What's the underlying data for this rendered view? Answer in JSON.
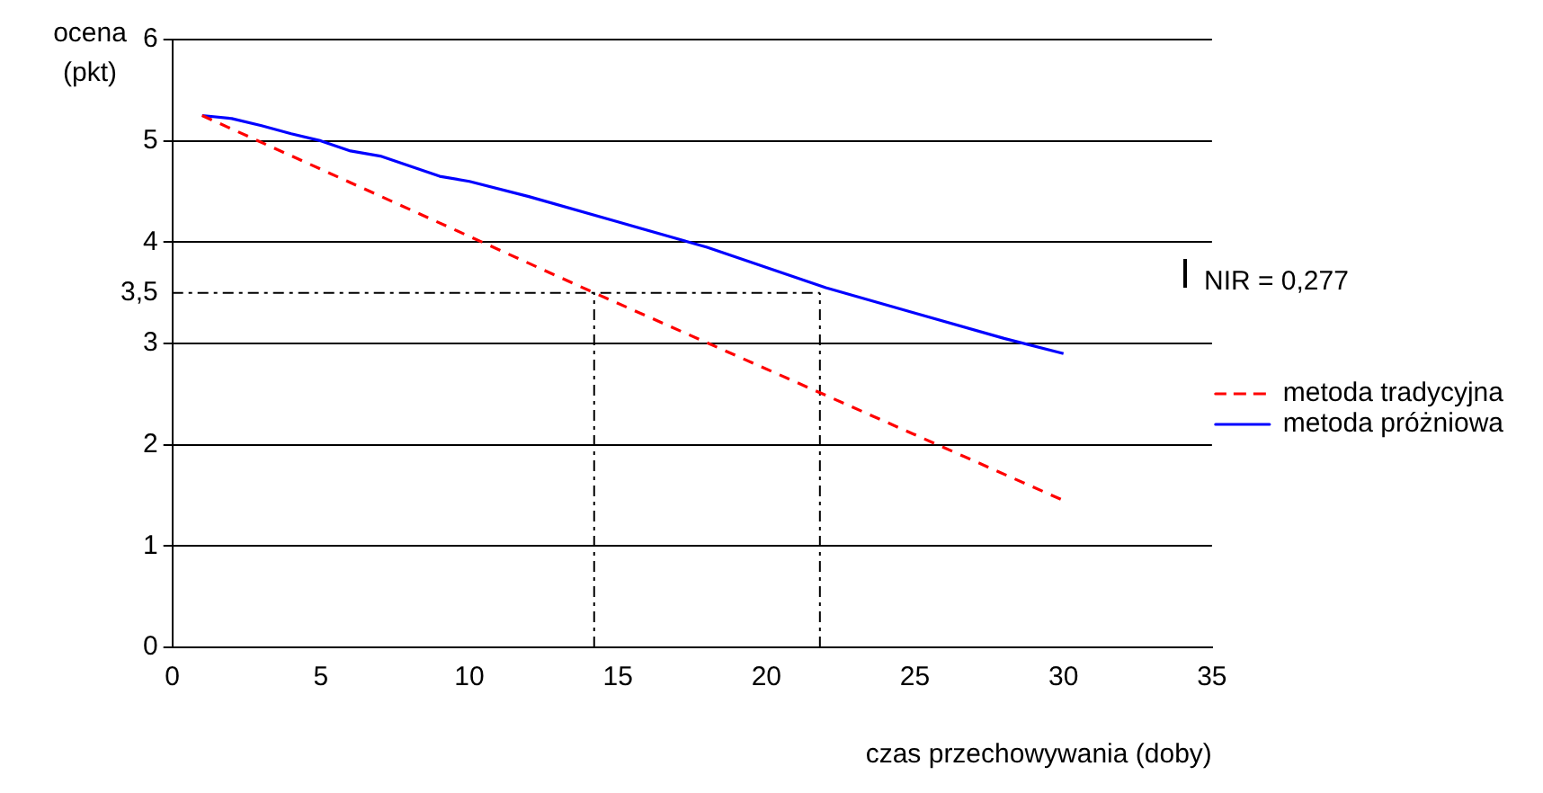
{
  "chart_data": {
    "type": "line",
    "xlabel": "czas przechowywania (doby)",
    "ylabel": "ocena (pkt)",
    "xlim": [
      0,
      35
    ],
    "xticks": [
      0,
      5,
      10,
      15,
      20,
      25,
      30,
      35
    ],
    "ylim": [
      0,
      6
    ],
    "yticks": [
      0,
      1,
      2,
      3,
      {
        "value": 3.5,
        "label": "3,5"
      },
      4,
      5,
      6
    ],
    "grid": "y",
    "legend": "right",
    "marker": "none",
    "annotations": [
      "NIR = 0,277"
    ],
    "series": [
      {
        "name": "metoda tradycyjna",
        "color": "#ff0000",
        "line_style": "dashed",
        "x": [
          1,
          14.2,
          30
        ],
        "values": [
          5.25,
          3.5,
          1.45
        ]
      },
      {
        "name": "metoda próżniowa",
        "color": "#0000ff",
        "line_style": "solid",
        "x": [
          1,
          2,
          3,
          4,
          5,
          6,
          7,
          8,
          9,
          10,
          12,
          15,
          18,
          20,
          22,
          25,
          28,
          30
        ],
        "values": [
          5.25,
          5.22,
          5.15,
          5.07,
          5.0,
          4.9,
          4.85,
          4.75,
          4.65,
          4.6,
          4.45,
          4.2,
          3.95,
          3.75,
          3.55,
          3.3,
          3.05,
          2.9
        ]
      },
      {
        "color": "#000000",
        "line_style": "dashdot",
        "x": [
          0,
          21.8
        ],
        "values": [
          3.5,
          3.5
        ]
      },
      {
        "color": "#000000",
        "line_style": "dashdot",
        "x": [
          14.2,
          14.2
        ],
        "values": [
          0,
          3.5
        ]
      },
      {
        "color": "#000000",
        "line_style": "dashdot",
        "x": [
          21.8,
          21.8
        ],
        "values": [
          0,
          3.5
        ]
      }
    ]
  }
}
